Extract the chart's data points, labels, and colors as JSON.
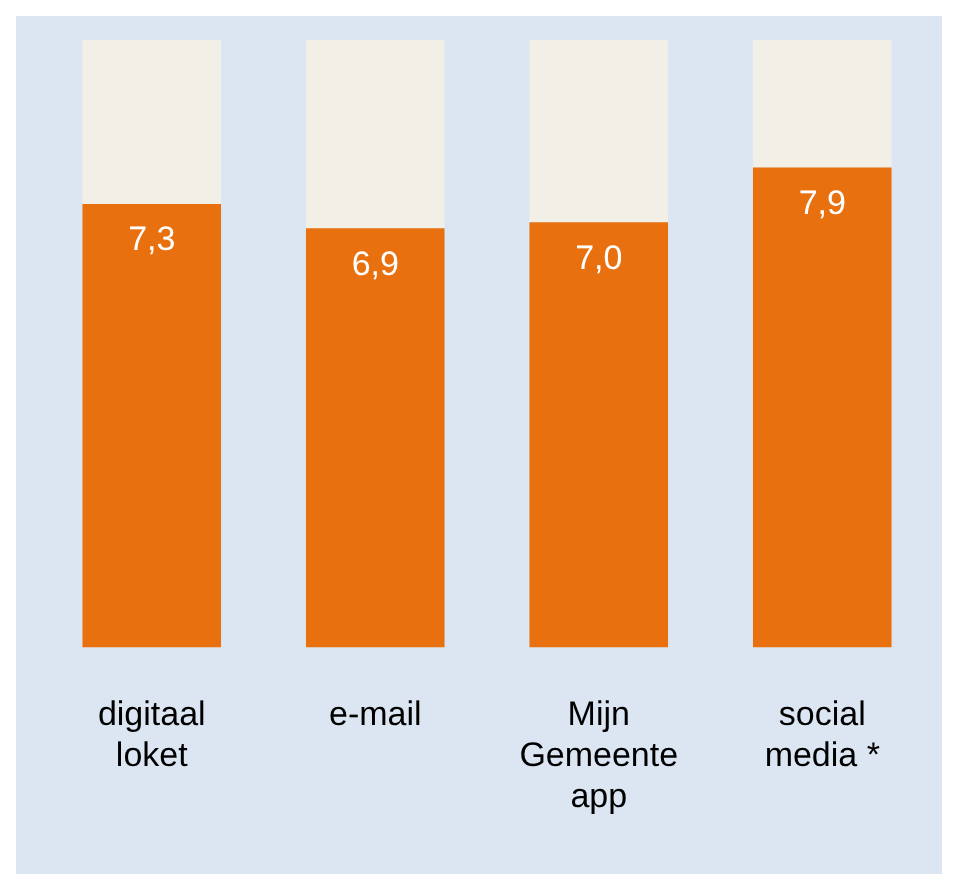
{
  "chart_data": {
    "type": "bar",
    "stacked": true,
    "categories": [
      "digitaal\nloket",
      "e-mail",
      "Mijn\nGemeente\napp",
      "social\nmedia *"
    ],
    "series": [
      {
        "color": "#e8700f",
        "values": [
          7.3,
          6.9,
          7.0,
          7.9
        ],
        "value_labels": [
          "7,3",
          "6,9",
          "7,0",
          "7,9"
        ]
      },
      {
        "color": "#f2f0e6",
        "values": [
          2.7,
          3.1,
          3.0,
          2.1
        ]
      }
    ],
    "ylim": [
      0,
      10
    ],
    "tick_labels": "x",
    "grid": false,
    "legend": false
  }
}
